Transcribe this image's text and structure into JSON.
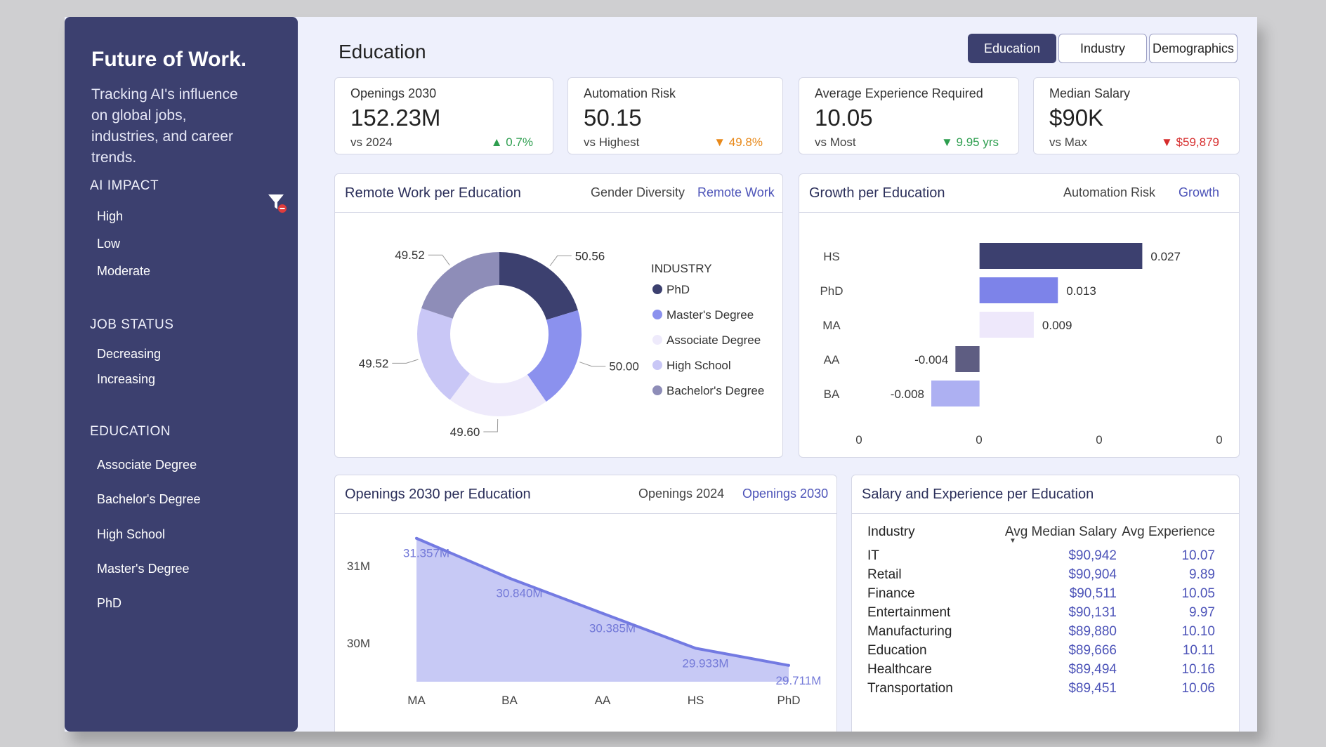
{
  "sidebar": {
    "brand": "Future of Work.",
    "tagline": "Tracking AI's influence on global jobs, industries, and career trends.",
    "groups": [
      {
        "title": "AI IMPACT",
        "items": [
          "High",
          "Low",
          "Moderate"
        ]
      },
      {
        "title": "JOB STATUS",
        "items": [
          "Decreasing",
          "Increasing"
        ]
      },
      {
        "title": "EDUCATION",
        "items": [
          "Associate Degree",
          "Bachelor's Degree",
          "High School",
          "Master's Degree",
          "PhD"
        ]
      }
    ]
  },
  "header": {
    "title": "Education",
    "tabs": [
      {
        "label": "Education",
        "active": true
      },
      {
        "label": "Industry",
        "active": false
      },
      {
        "label": "Demographics",
        "active": false
      }
    ]
  },
  "kpis": [
    {
      "label": "Openings 2030",
      "value": "152.23M",
      "sub": "vs 2024",
      "delta": "0.7%",
      "direction": "up",
      "color": "#2e9e4f"
    },
    {
      "label": "Automation Risk",
      "value": "50.15",
      "sub": "vs Highest",
      "delta": "49.8%",
      "direction": "down",
      "color": "#e8891a"
    },
    {
      "label": "Average Experience Required",
      "value": "10.05",
      "sub": "vs Most",
      "delta": "9.95 yrs",
      "direction": "down",
      "color": "#2e9e4f"
    },
    {
      "label": "Median Salary",
      "value": "$90K",
      "sub": "vs Max",
      "delta": "$59,879",
      "direction": "down",
      "color": "#d62c2c"
    }
  ],
  "remote_panel": {
    "title": "Remote Work per Education",
    "tabs": [
      "Gender Diversity",
      "Remote Work"
    ],
    "legend_title": "INDUSTRY"
  },
  "growth_panel": {
    "title": "Growth per Education",
    "tabs": [
      "Automation Risk",
      "Growth"
    ]
  },
  "openings_panel": {
    "title": "Openings 2030 per Education",
    "tabs": [
      "Openings 2024",
      "Openings 2030"
    ]
  },
  "salary_panel": {
    "title": "Salary and Experience per Education",
    "columns": [
      "Industry",
      "Avg Median Salary",
      "Avg Experience"
    ],
    "rows": [
      {
        "industry": "IT",
        "salary": "$90,942",
        "exp": "10.07"
      },
      {
        "industry": "Retail",
        "salary": "$90,904",
        "exp": "9.89"
      },
      {
        "industry": "Finance",
        "salary": "$90,511",
        "exp": "10.05"
      },
      {
        "industry": "Entertainment",
        "salary": "$90,131",
        "exp": "9.97"
      },
      {
        "industry": "Manufacturing",
        "salary": "$89,880",
        "exp": "10.10"
      },
      {
        "industry": "Education",
        "salary": "$89,666",
        "exp": "10.11"
      },
      {
        "industry": "Healthcare",
        "salary": "$89,494",
        "exp": "10.16"
      },
      {
        "industry": "Transportation",
        "salary": "$89,451",
        "exp": "10.06"
      }
    ]
  },
  "chart_data": [
    {
      "type": "pie",
      "title": "Remote Work per Education",
      "donut": true,
      "legend": "right",
      "categories": [
        "PhD",
        "Master's Degree",
        "Associate Degree",
        "High School",
        "Bachelor's Degree"
      ],
      "values": [
        50.56,
        50.0,
        49.6,
        49.52,
        49.52
      ],
      "labels": [
        "50.56",
        "50.00",
        "49.60",
        "49.52",
        "49.52"
      ],
      "colors": [
        "#3c406f",
        "#8b91ee",
        "#eeeafb",
        "#c9c7f6",
        "#8e8db8"
      ]
    },
    {
      "type": "bar",
      "orientation": "horizontal",
      "title": "Growth per Education",
      "categories": [
        "HS",
        "PhD",
        "MA",
        "AA",
        "BA"
      ],
      "values": [
        0.027,
        0.013,
        0.009,
        -0.004,
        -0.008
      ],
      "labels": [
        "0.027",
        "0.013",
        "0.009",
        "-0.004",
        "-0.008"
      ],
      "colors": [
        "#3c406f",
        "#7d83e9",
        "#eee8fb",
        "#5e5d82",
        "#adb0f2"
      ],
      "xlim": [
        -0.02,
        0.04
      ],
      "x_ticks": [
        "0",
        "0",
        "0",
        "0"
      ]
    },
    {
      "type": "area",
      "title": "Openings 2030 per Education",
      "categories": [
        "MA",
        "BA",
        "AA",
        "HS",
        "PhD"
      ],
      "values": [
        31.357,
        30.84,
        30.385,
        29.933,
        29.711
      ],
      "labels": [
        "31.357M",
        "30.840M",
        "30.385M",
        "29.933M",
        "29.711M"
      ],
      "ylim": [
        29.5,
        31.5
      ],
      "y_ticks": [
        {
          "value": 31,
          "label": "31M"
        },
        {
          "value": 30,
          "label": "30M"
        }
      ],
      "line_color": "#737ae2",
      "fill_color": "#c7c9f5"
    }
  ]
}
